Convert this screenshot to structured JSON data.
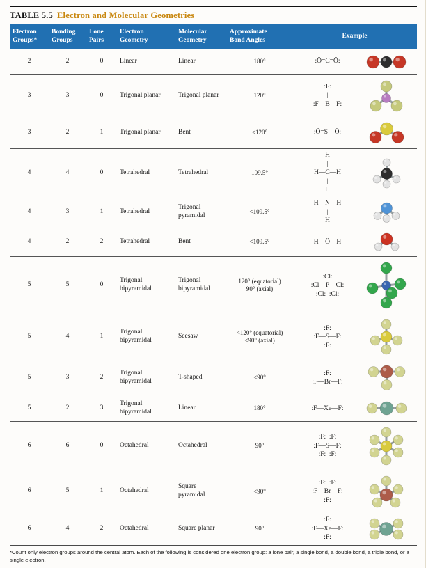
{
  "page": {
    "title": "TABLE 5.5",
    "subtitle": "Electron and Molecular Geometries",
    "footnote": "*Count only electron groups around the central atom. Each of the following is considered one electron group: a lone pair, a single bond, a double bond, a triple bond, or a single electron."
  },
  "colors": {
    "header_bg": "#2170b2",
    "title_accent": "#c8860d",
    "bond": "#98a0a2"
  },
  "table": {
    "columns": [
      "Electron\nGroups*",
      "Bonding\nGroups",
      "Lone\nPairs",
      "Electron\nGeometry",
      "Molecular\nGeometry",
      "Approximate\nBond Angles",
      "Example"
    ],
    "rows": [
      {
        "electron_groups": "2",
        "bonding_groups": "2",
        "lone_pairs": "0",
        "electron_geometry": "Linear",
        "molecular_geometry": "Linear",
        "bond_angles": "180°",
        "lewis": [
          ":Ö=C=Ö:"
        ],
        "molecule": {
          "formula": "CO2",
          "atoms": [
            [
              -19,
              0,
              9,
              "#c63726"
            ],
            [
              0,
              0,
              8,
              "#2d2d2d"
            ],
            [
              19,
              0,
              9,
              "#c63726"
            ]
          ],
          "bonds": [
            [
              1,
              0
            ],
            [
              1,
              2
            ]
          ]
        },
        "group_end": true
      },
      {
        "electron_groups": "3",
        "bonding_groups": "3",
        "lone_pairs": "0",
        "electron_geometry": "Trigonal planar",
        "molecular_geometry": "Trigonal planar",
        "bond_angles": "120°",
        "lewis": [
          ":F:",
          "|",
          ":F—B—F:"
        ],
        "molecule": {
          "formula": "BF3",
          "atoms": [
            [
              0,
              -17,
              8,
              "#c5c97c"
            ],
            [
              -15,
              11,
              8,
              "#c5c97c"
            ],
            [
              15,
              11,
              8,
              "#c5c97c"
            ],
            [
              0,
              0,
              6.5,
              "#b77cc1"
            ]
          ],
          "bonds": [
            [
              3,
              0
            ],
            [
              3,
              1
            ],
            [
              3,
              2
            ]
          ]
        },
        "group_end": false
      },
      {
        "electron_groups": "3",
        "bonding_groups": "2",
        "lone_pairs": "1",
        "electron_geometry": "Trigonal planar",
        "molecular_geometry": "Bent",
        "bond_angles": "<120°",
        "lewis": [
          ":Ö=S—Ö:"
        ],
        "molecule": {
          "formula": "SO2",
          "atoms": [
            [
              -16,
              7,
              8.5,
              "#c63726"
            ],
            [
              16,
              7,
              8.5,
              "#c63726"
            ],
            [
              0,
              -5,
              9,
              "#d9ca3d"
            ]
          ],
          "bonds": [
            [
              2,
              0
            ],
            [
              2,
              1
            ]
          ]
        },
        "group_end": true
      },
      {
        "electron_groups": "4",
        "bonding_groups": "4",
        "lone_pairs": "0",
        "electron_geometry": "Tetrahedral",
        "molecular_geometry": "Tetrahedral",
        "bond_angles": "109.5°",
        "lewis": [
          "H",
          "|",
          "H—C—H",
          "|",
          "H"
        ],
        "molecule": {
          "formula": "CH4",
          "atoms": [
            [
              0,
              -16,
              5.5,
              "#e3e3e3"
            ],
            [
              -14,
              8,
              5.5,
              "#e3e3e3"
            ],
            [
              14,
              8,
              5.5,
              "#e3e3e3"
            ],
            [
              0,
              0,
              8,
              "#2d2d2d"
            ],
            [
              0,
              15,
              5.5,
              "#e3e3e3"
            ]
          ],
          "bonds": [
            [
              3,
              0
            ],
            [
              3,
              1
            ],
            [
              3,
              2
            ],
            [
              3,
              4
            ]
          ]
        },
        "group_end": false
      },
      {
        "electron_groups": "4",
        "bonding_groups": "3",
        "lone_pairs": "1",
        "electron_geometry": "Tetrahedral",
        "molecular_geometry": "Trigonal pyramidal",
        "bond_angles": "<109.5°",
        "lewis": [
          "H—N—H",
          "|",
          "H"
        ],
        "molecule": {
          "formula": "NH3",
          "atoms": [
            [
              -13,
              8,
              5.5,
              "#e3e3e3"
            ],
            [
              13,
              8,
              5.5,
              "#e3e3e3"
            ],
            [
              0,
              -3,
              8,
              "#4f93d6"
            ],
            [
              0,
              12,
              5.5,
              "#e3e3e3"
            ]
          ],
          "bonds": [
            [
              2,
              0
            ],
            [
              2,
              1
            ],
            [
              2,
              3
            ]
          ]
        },
        "group_end": false
      },
      {
        "electron_groups": "4",
        "bonding_groups": "2",
        "lone_pairs": "2",
        "electron_geometry": "Tetrahedral",
        "molecular_geometry": "Bent",
        "bond_angles": "<109.5°",
        "lewis": [
          "H—Ö—H"
        ],
        "molecule": {
          "formula": "H2O",
          "atoms": [
            [
              -12,
              8,
              5.5,
              "#e3e3e3"
            ],
            [
              12,
              8,
              5.5,
              "#e3e3e3"
            ],
            [
              0,
              -3,
              8.5,
              "#cc3322"
            ]
          ],
          "bonds": [
            [
              2,
              0
            ],
            [
              2,
              1
            ]
          ]
        },
        "group_end": true
      },
      {
        "electron_groups": "5",
        "bonding_groups": "5",
        "lone_pairs": "0",
        "electron_geometry": "Trigonal bipyramidal",
        "molecular_geometry": "Trigonal bipyramidal",
        "bond_angles": "120° (equatorial)\n90° (axial)",
        "lewis": [
          ":Cl:",
          ":Cl—P—Cl:",
          ":Cl:  :Cl:"
        ],
        "molecule": {
          "formula": "PCl5",
          "atoms": [
            [
              0,
              -25,
              8,
              "#33a64c"
            ],
            [
              -20,
              4,
              8,
              "#33a64c"
            ],
            [
              20,
              -2,
              8,
              "#33a64c"
            ],
            [
              0,
              25,
              8,
              "#33a64c"
            ],
            [
              0,
              0,
              6.5,
              "#3a66b0"
            ],
            [
              8,
              11,
              8,
              "#33a64c"
            ]
          ],
          "bonds": [
            [
              4,
              0
            ],
            [
              4,
              1
            ],
            [
              4,
              2
            ],
            [
              4,
              3
            ],
            [
              4,
              5
            ]
          ]
        },
        "group_end": false
      },
      {
        "electron_groups": "5",
        "bonding_groups": "4",
        "lone_pairs": "1",
        "electron_geometry": "Trigonal bipyramidal",
        "molecular_geometry": "Seesaw",
        "bond_angles": "<120° (equatorial)\n<90° (axial)",
        "lewis": [
          ":F:",
          ":F—S—F:",
          ":F:"
        ],
        "molecule": {
          "formula": "SF4",
          "atoms": [
            [
              0,
              -18,
              7,
              "#d2d491"
            ],
            [
              -16,
              5,
              7,
              "#d2d491"
            ],
            [
              16,
              5,
              7,
              "#d2d491"
            ],
            [
              0,
              0,
              8,
              "#d9ca3d"
            ],
            [
              0,
              18,
              7,
              "#d2d491"
            ]
          ],
          "bonds": [
            [
              3,
              0
            ],
            [
              3,
              1
            ],
            [
              3,
              2
            ],
            [
              3,
              4
            ]
          ]
        },
        "group_end": false
      },
      {
        "electron_groups": "5",
        "bonding_groups": "3",
        "lone_pairs": "2",
        "electron_geometry": "Trigonal bipyramidal",
        "molecular_geometry": "T-shaped",
        "bond_angles": "<90°",
        "lewis": [
          ":F:",
          ":F—Br—F:"
        ],
        "molecule": {
          "formula": "BrF3",
          "atoms": [
            [
              -19,
              0,
              7.5,
              "#d2d491"
            ],
            [
              19,
              0,
              7.5,
              "#d2d491"
            ],
            [
              0,
              0,
              9,
              "#ad5c49"
            ],
            [
              0,
              19,
              7.5,
              "#d2d491"
            ]
          ],
          "bonds": [
            [
              2,
              0
            ],
            [
              2,
              1
            ],
            [
              2,
              3
            ]
          ]
        },
        "group_end": false
      },
      {
        "electron_groups": "5",
        "bonding_groups": "2",
        "lone_pairs": "3",
        "electron_geometry": "Trigonal bipyramidal",
        "molecular_geometry": "Linear",
        "bond_angles": "180°",
        "lewis": [
          ":F—Xe—F:"
        ],
        "molecule": {
          "formula": "XeF2",
          "atoms": [
            [
              -21,
              0,
              7.5,
              "#d2d491"
            ],
            [
              21,
              0,
              7.5,
              "#d2d491"
            ],
            [
              0,
              0,
              9.5,
              "#6fa392"
            ]
          ],
          "bonds": [
            [
              2,
              0
            ],
            [
              2,
              1
            ]
          ]
        },
        "group_end": true
      },
      {
        "electron_groups": "6",
        "bonding_groups": "6",
        "lone_pairs": "0",
        "electron_geometry": "Octahedral",
        "molecular_geometry": "Octahedral",
        "bond_angles": "90°",
        "lewis": [
          ":F:  :F:",
          ":F—S—F:",
          ":F:  :F:"
        ],
        "molecule": {
          "formula": "SF6",
          "atoms": [
            [
              0,
              -20,
              7,
              "#d2d491"
            ],
            [
              -17,
              -9,
              7,
              "#d2d491"
            ],
            [
              17,
              -9,
              7,
              "#d2d491"
            ],
            [
              -17,
              9,
              7,
              "#d2d491"
            ],
            [
              17,
              9,
              7,
              "#d2d491"
            ],
            [
              0,
              20,
              7,
              "#d2d491"
            ],
            [
              0,
              0,
              8,
              "#d9ca3d"
            ]
          ],
          "bonds": [
            [
              6,
              0
            ],
            [
              6,
              1
            ],
            [
              6,
              2
            ],
            [
              6,
              3
            ],
            [
              6,
              4
            ],
            [
              6,
              5
            ]
          ]
        },
        "group_end": false
      },
      {
        "electron_groups": "6",
        "bonding_groups": "5",
        "lone_pairs": "1",
        "electron_geometry": "Octahedral",
        "molecular_geometry": "Square pyramidal",
        "bond_angles": "<90°",
        "lewis": [
          ":F:  :F:",
          ":F—Br—F:",
          ":F:"
        ],
        "molecule": {
          "formula": "BrF5",
          "atoms": [
            [
              0,
              -19,
              7,
              "#d2d491"
            ],
            [
              -17,
              -7,
              7,
              "#d2d491"
            ],
            [
              17,
              -7,
              7,
              "#d2d491"
            ],
            [
              0,
              1,
              9,
              "#ad5c49"
            ],
            [
              -13,
              12,
              7,
              "#d2d491"
            ],
            [
              13,
              12,
              7,
              "#d2d491"
            ]
          ],
          "bonds": [
            [
              3,
              0
            ],
            [
              3,
              1
            ],
            [
              3,
              2
            ],
            [
              3,
              4
            ],
            [
              3,
              5
            ]
          ]
        },
        "group_end": false
      },
      {
        "electron_groups": "6",
        "bonding_groups": "4",
        "lone_pairs": "2",
        "electron_geometry": "Octahedral",
        "molecular_geometry": "Square planar",
        "bond_angles": "90°",
        "lewis": [
          ":F:",
          ":F—Xe—F:",
          ":F:"
        ],
        "molecule": {
          "formula": "XeF4",
          "atoms": [
            [
              -17,
              -8,
              7,
              "#d2d491"
            ],
            [
              17,
              -8,
              7,
              "#d2d491"
            ],
            [
              0,
              0,
              9.5,
              "#6fa392"
            ],
            [
              -17,
              8,
              7,
              "#d2d491"
            ],
            [
              17,
              8,
              7,
              "#d2d491"
            ]
          ],
          "bonds": [
            [
              2,
              0
            ],
            [
              2,
              1
            ],
            [
              2,
              3
            ],
            [
              2,
              4
            ]
          ]
        },
        "group_end": true
      }
    ]
  }
}
